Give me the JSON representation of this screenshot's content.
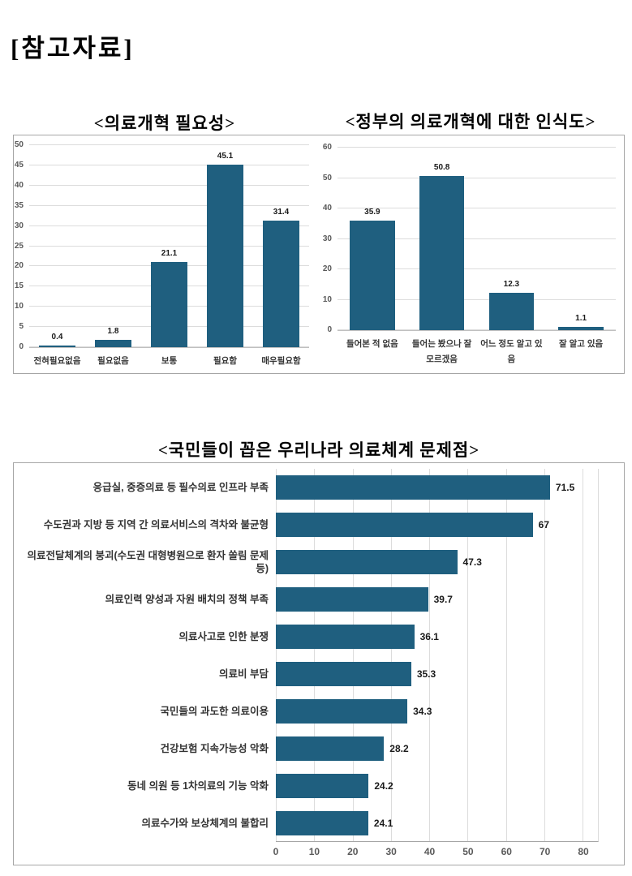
{
  "page": {
    "title": "[참고자료]"
  },
  "colors": {
    "bar": "#1f5f7f",
    "gridline": "#dcdcdc",
    "axis_line": "#a6a6a6",
    "box_border": "#a6a6a6",
    "tick_label": "#595959",
    "value_label": "#1a1a1a",
    "category_label": "#333333"
  },
  "chart_data": [
    {
      "type": "bar",
      "orientation": "vertical",
      "title": "<의료개혁 필요성>",
      "categories": [
        "전혀필요없음",
        "필요없음",
        "보통",
        "필요함",
        "매우필요함"
      ],
      "values": [
        0.4,
        1.8,
        21.1,
        45.1,
        31.4
      ],
      "xlabel": "",
      "ylabel": "",
      "ylim": [
        0,
        50
      ],
      "ytick_step": 5,
      "grid": true,
      "legend": false,
      "value_labels": true
    },
    {
      "type": "bar",
      "orientation": "vertical",
      "title": "<정부의 의료개혁에 대한 인식도>",
      "categories": [
        "들어본 적 없음",
        "들어는 봤으나 잘\n모르겠음",
        "어느 정도 알고 있음",
        "잘 알고 있음"
      ],
      "values": [
        35.9,
        50.8,
        12.3,
        1.1
      ],
      "xlabel": "",
      "ylabel": "",
      "ylim": [
        0,
        60
      ],
      "ytick_step": 10,
      "grid": true,
      "legend": false,
      "value_labels": true
    },
    {
      "type": "bar",
      "orientation": "horizontal",
      "title": "<국민들이 꼽은 우리나라 의료체계 문제점>",
      "categories": [
        "응급실, 중증의료 등 필수의료 인프라 부족",
        "수도권과 지방 등 지역 간 의료서비스의 격차와 불균형",
        "의료전달체계의 붕괴(수도권 대형병원으로 환자 쏠림 문제 등)",
        "의료인력 양성과 자원 배치의 정책 부족",
        "의료사고로 인한 분쟁",
        "의료비 부담",
        "국민들의 과도한 의료이용",
        "건강보험 지속가능성 악화",
        "동네 의원 등 1차의료의 기능 악화",
        "의료수가와 보상체계의 불합리"
      ],
      "values": [
        71.5,
        67,
        47.3,
        39.7,
        36.1,
        35.3,
        34.3,
        28.2,
        24.2,
        24.1
      ],
      "xlabel": "",
      "ylabel": "",
      "xlim": [
        0,
        84
      ],
      "xticks_max": 80,
      "xtick_step": 10,
      "grid": true,
      "legend": false,
      "value_labels": true
    }
  ]
}
